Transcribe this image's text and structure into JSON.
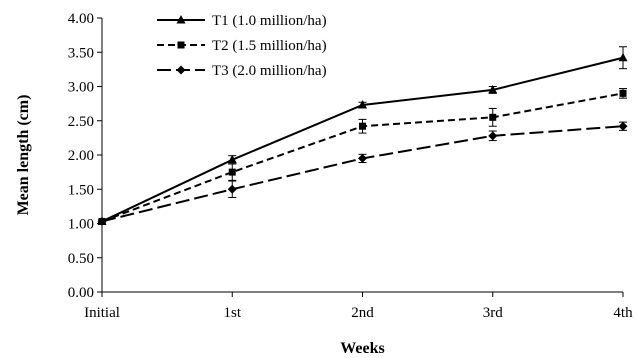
{
  "chart_data": {
    "type": "line",
    "title": "",
    "xlabel": "Weeks",
    "ylabel": "Mean length (cm)",
    "categories": [
      "Initial",
      "1st",
      "2nd",
      "3rd",
      "4th"
    ],
    "ylim": [
      0,
      4
    ],
    "yticks": [
      0,
      0.5,
      1,
      1.5,
      2,
      2.5,
      3,
      3.5,
      4
    ],
    "ytick_labels": [
      "0.00",
      "0.50",
      "1.00",
      "1.50",
      "2.00",
      "2.50",
      "3.00",
      "3.50",
      "4.00"
    ],
    "grid": false,
    "legend_position": "top-left",
    "series": [
      {
        "name": "T1 (1.0 million/ha)",
        "values": [
          1.03,
          1.93,
          2.73,
          2.95,
          3.42
        ],
        "errors": [
          0.02,
          0.06,
          0.04,
          0.05,
          0.16
        ],
        "marker": "triangle",
        "dash": "solid",
        "color": "#000000"
      },
      {
        "name": "T2 (1.5 million/ha)",
        "values": [
          1.03,
          1.75,
          2.42,
          2.55,
          2.9
        ],
        "errors": [
          0.02,
          0.12,
          0.1,
          0.13,
          0.07
        ],
        "marker": "square",
        "dash": "dashed",
        "color": "#000000"
      },
      {
        "name": "T3 (2.0 million/ha)",
        "values": [
          1.03,
          1.5,
          1.95,
          2.28,
          2.42
        ],
        "errors": [
          0.02,
          0.12,
          0.06,
          0.07,
          0.06
        ],
        "marker": "diamond",
        "dash": "longdash",
        "color": "#000000"
      }
    ]
  }
}
